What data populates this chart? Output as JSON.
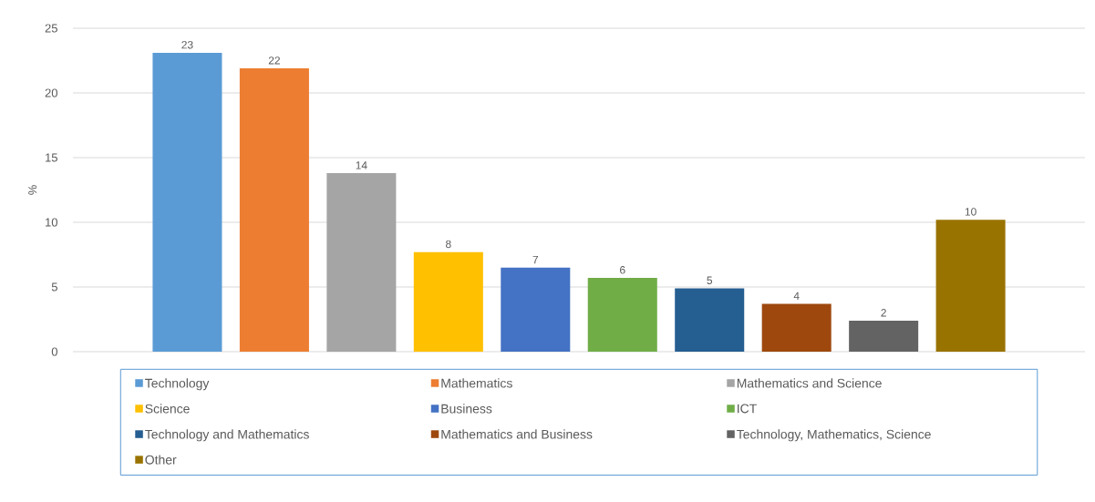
{
  "chart_data": {
    "type": "bar",
    "ylabel": "%",
    "categories": [
      null
    ],
    "ylim": [
      0,
      25
    ],
    "yticks": [
      0,
      5,
      10,
      15,
      20,
      25
    ],
    "grid": "y",
    "legend": "bottom",
    "series": [
      {
        "name": "Technology",
        "color": "#5b9bd5",
        "values": [
          23.1
        ],
        "value_labels": [
          "23"
        ]
      },
      {
        "name": "Mathematics",
        "color": "#ed7d31",
        "values": [
          21.9
        ],
        "value_labels": [
          "22"
        ]
      },
      {
        "name": "Mathematics and Science",
        "color": "#a5a5a5",
        "values": [
          13.8
        ],
        "value_labels": [
          "14"
        ]
      },
      {
        "name": "Science",
        "color": "#ffc000",
        "values": [
          7.7
        ],
        "value_labels": [
          "8"
        ]
      },
      {
        "name": "Business",
        "color": "#4472c4",
        "values": [
          6.5
        ],
        "value_labels": [
          "7"
        ]
      },
      {
        "name": "ICT",
        "color": "#70ad47",
        "values": [
          5.7
        ],
        "value_labels": [
          "6"
        ]
      },
      {
        "name": "Technology and Mathematics",
        "color": "#255e91",
        "values": [
          4.9
        ],
        "value_labels": [
          "5"
        ]
      },
      {
        "name": "Mathematics and Business",
        "color": "#9e480e",
        "values": [
          3.7
        ],
        "value_labels": [
          "4"
        ]
      },
      {
        "name": "Technology, Mathematics, Science",
        "color": "#636363",
        "values": [
          2.4
        ],
        "value_labels": [
          "2"
        ]
      },
      {
        "name": "Other",
        "color": "#997300",
        "values": [
          10.2
        ],
        "value_labels": [
          "10"
        ]
      }
    ]
  }
}
